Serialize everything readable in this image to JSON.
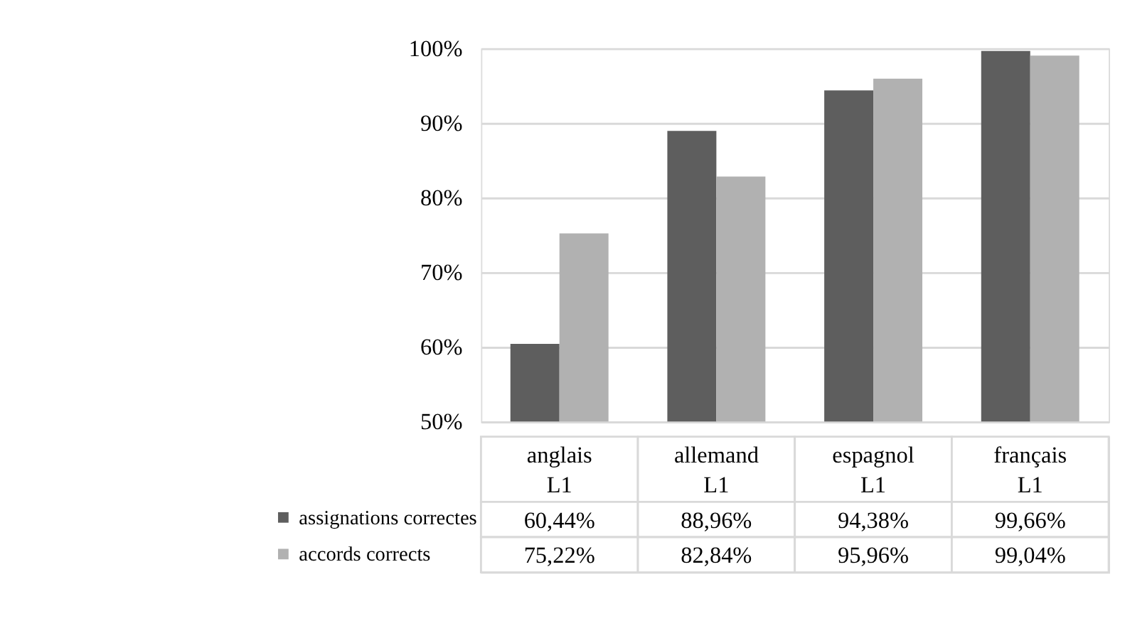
{
  "chart_data": {
    "type": "bar",
    "categories": [
      "anglais L1",
      "allemand L1",
      "espagnol L1",
      "français L1"
    ],
    "series": [
      {
        "name": "assignations correctes",
        "color": "#5e5e5e",
        "values": [
          60.44,
          88.96,
          94.38,
          99.66
        ],
        "value_labels": [
          "60,44%",
          "88,96%",
          "94,38%",
          "99,66%"
        ]
      },
      {
        "name": "accords corrects",
        "color": "#b1b1b1",
        "values": [
          75.22,
          82.84,
          95.96,
          99.04
        ],
        "value_labels": [
          "75,22%",
          "82,84%",
          "95,96%",
          "99,04%"
        ]
      }
    ],
    "ylim": [
      50,
      100
    ],
    "yticks": [
      {
        "value": 50,
        "label": "50%"
      },
      {
        "value": 60,
        "label": "60%"
      },
      {
        "value": 70,
        "label": "70%"
      },
      {
        "value": 80,
        "label": "80%"
      },
      {
        "value": 90,
        "label": "90%"
      },
      {
        "value": 100,
        "label": "100%"
      }
    ],
    "grid": "y",
    "legend": "bottom"
  }
}
